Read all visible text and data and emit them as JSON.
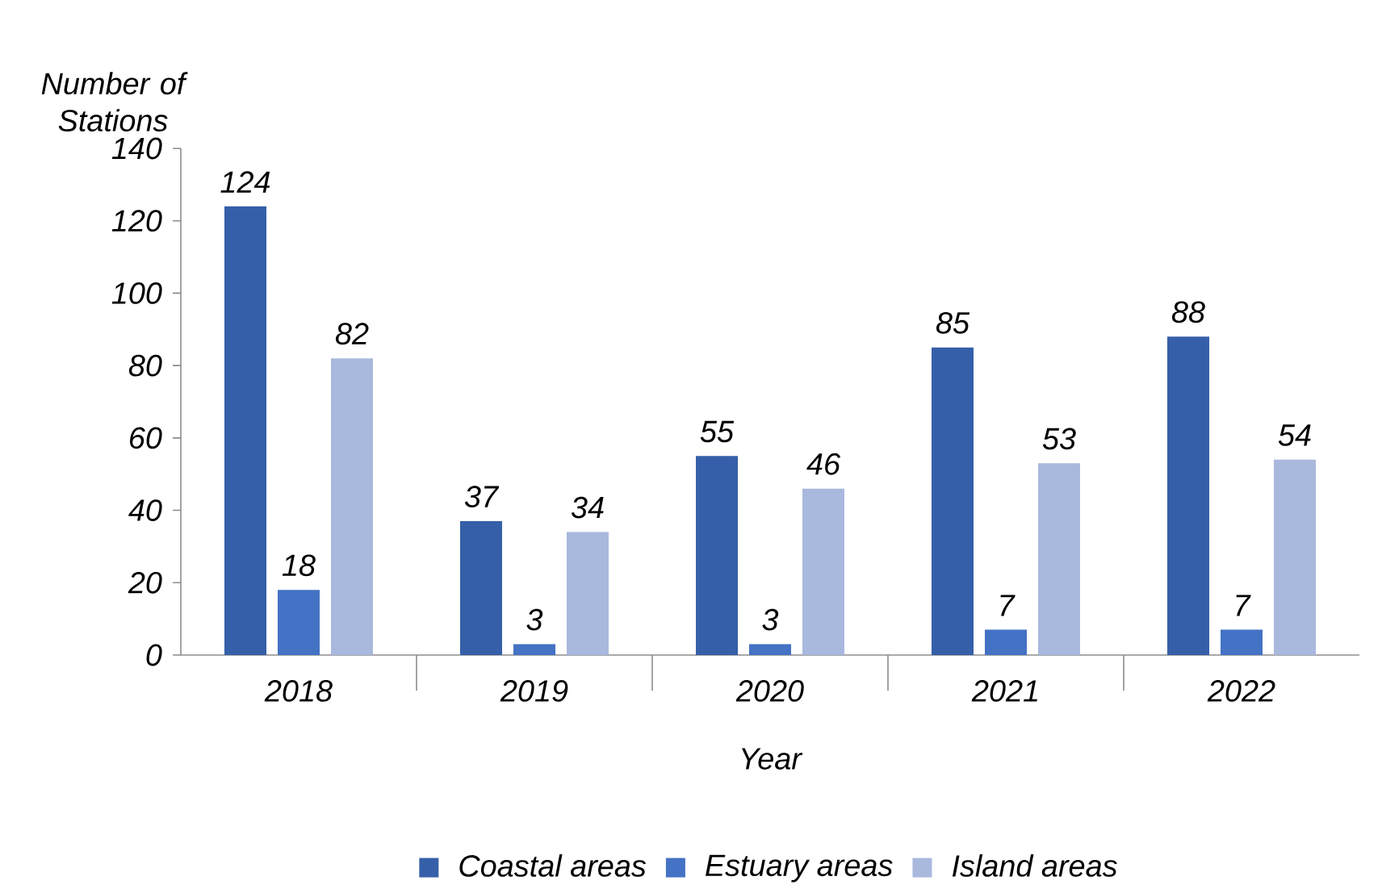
{
  "chart_data": {
    "type": "bar",
    "xlabel": "Year",
    "ylabel": "Number of Stations",
    "categories": [
      "2018",
      "2019",
      "2020",
      "2021",
      "2022"
    ],
    "series": [
      {
        "name": "Coastal areas",
        "color": "#355fa8",
        "values": [
          124,
          37,
          55,
          85,
          88
        ]
      },
      {
        "name": "Estuary areas",
        "color": "#4472c4",
        "values": [
          18,
          3,
          3,
          7,
          7
        ]
      },
      {
        "name": "Island areas",
        "color": "#a9b8dd",
        "values": [
          82,
          34,
          46,
          53,
          54
        ]
      }
    ],
    "ylim": [
      0,
      140
    ],
    "yticks": [
      0,
      20,
      40,
      60,
      80,
      100,
      120,
      140
    ],
    "data_labels": true,
    "legend": "bottom"
  }
}
